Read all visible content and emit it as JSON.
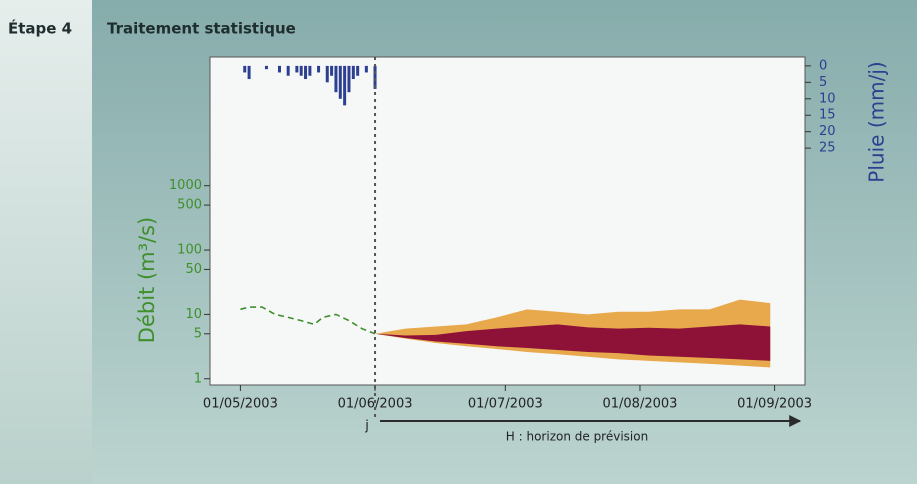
{
  "header": {
    "step": "Étape 4",
    "title": "Traitement statistique"
  },
  "chart_data": {
    "type": "band",
    "y_label": "Débit (m³/s)",
    "y2_label": "Pluie (mm/j)",
    "xlim": [
      "24/04/2003",
      "08/09/2003"
    ],
    "xticks": [
      "01/05/2003",
      "01/06/2003",
      "01/07/2003",
      "01/08/2003",
      "01/09/2003"
    ],
    "log_y": true,
    "ylim": [
      0.8,
      100000
    ],
    "yticks": [
      1,
      5,
      10,
      50,
      100,
      500,
      1000
    ],
    "y2lim": [
      97,
      -2.7
    ],
    "y2ticks": [
      0,
      5,
      10,
      15,
      20,
      25
    ],
    "forecast_start": "01/06/2003",
    "annotations": {
      "start_label": "j",
      "horizon_label": "H : horizon de prévision"
    },
    "observed": {
      "color": "#3f8f2c",
      "dashed": true,
      "x": [
        "01/05/2003",
        "03/05/2003",
        "06/05/2003",
        "09/05/2003",
        "12/05/2003",
        "15/05/2003",
        "18/05/2003",
        "20/05/2003",
        "23/05/2003",
        "26/05/2003",
        "29/05/2003",
        "01/06/2003"
      ],
      "values": [
        12,
        13,
        13,
        10,
        9,
        8,
        7,
        9,
        10,
        8,
        6,
        5
      ]
    },
    "forecast": {
      "x": [
        "01/06/2003",
        "08/06/2003",
        "15/06/2003",
        "22/06/2003",
        "29/06/2003",
        "06/07/2003",
        "13/07/2003",
        "20/07/2003",
        "27/07/2003",
        "03/08/2003",
        "10/08/2003",
        "17/08/2003",
        "24/08/2003",
        "31/08/2003"
      ],
      "bands": [
        {
          "color": "#e8a94c",
          "upper": [
            5,
            6,
            6.5,
            7,
            9,
            12,
            11,
            10,
            11,
            11,
            12,
            12,
            17,
            15
          ],
          "lower": [
            5,
            4.2,
            3.6,
            3.2,
            2.9,
            2.6,
            2.4,
            2.2,
            2.0,
            1.9,
            1.8,
            1.7,
            1.6,
            1.5
          ]
        },
        {
          "color": "#8e1238",
          "upper": [
            5,
            4.7,
            4.8,
            5.5,
            6,
            6.5,
            7,
            6.3,
            6,
            6.2,
            6,
            6.5,
            7,
            6.5
          ],
          "lower": [
            5,
            4.3,
            3.8,
            3.5,
            3.2,
            3,
            2.8,
            2.6,
            2.5,
            2.3,
            2.2,
            2.1,
            2.0,
            1.9
          ]
        }
      ]
    },
    "rain": {
      "color": "#2d3f91",
      "axis": "y2",
      "x": [
        "02/05/2003",
        "03/05/2003",
        "07/05/2003",
        "10/05/2003",
        "12/05/2003",
        "14/05/2003",
        "15/05/2003",
        "16/05/2003",
        "17/05/2003",
        "19/05/2003",
        "21/05/2003",
        "22/05/2003",
        "23/05/2003",
        "24/05/2003",
        "25/05/2003",
        "26/05/2003",
        "27/05/2003",
        "28/05/2003",
        "30/05/2003",
        "01/06/2003"
      ],
      "values": [
        2,
        4,
        1,
        2,
        3,
        2,
        3,
        4,
        3,
        2,
        5,
        3,
        8,
        10,
        12,
        8,
        4,
        3,
        2,
        7
      ]
    }
  }
}
